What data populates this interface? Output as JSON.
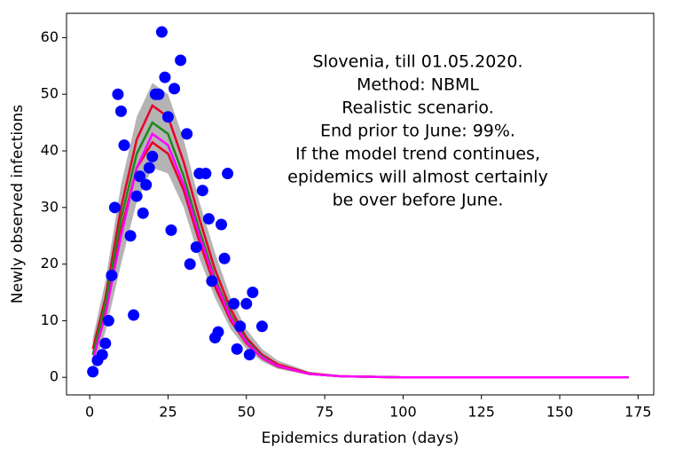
{
  "chart_data": {
    "type": "scatter",
    "annotation": [
      "Slovenia, till 01.05.2020.",
      "Method: NBML",
      "Realistic scenario.",
      "End prior to June: 99%.",
      "If the model trend continues,",
      "epidemics will almost certainly",
      "be over before June."
    ],
    "xlabel": "Epidemics duration (days)",
    "ylabel": "Newly observed infections",
    "xlim": [
      -7.4,
      180
    ],
    "ylim": [
      -3.1,
      64.3
    ],
    "xticks": [
      0,
      25,
      50,
      75,
      100,
      125,
      150,
      175
    ],
    "yticks": [
      0,
      10,
      20,
      30,
      40,
      50,
      60
    ],
    "color": "#0000ff",
    "x": [
      1,
      2.5,
      4,
      5,
      6,
      7,
      8,
      9,
      10,
      11,
      13,
      14,
      15,
      16,
      17,
      18,
      19,
      20,
      21,
      22,
      23,
      24,
      25,
      26,
      27,
      29,
      31,
      32,
      34,
      35,
      36,
      37,
      38,
      39,
      40,
      41,
      42,
      43,
      44,
      46,
      47,
      48,
      50,
      51,
      52,
      55
    ],
    "values": [
      1,
      3,
      4,
      6,
      10,
      18,
      30,
      50,
      47,
      41,
      25,
      11,
      32,
      35.5,
      29,
      34,
      37,
      39,
      50,
      50,
      61,
      53,
      46,
      26,
      51,
      56,
      43,
      20,
      23,
      36,
      33,
      36,
      28,
      17,
      7,
      8,
      27,
      21,
      36,
      13,
      5,
      9,
      13,
      4,
      15,
      9
    ],
    "curves": {
      "x": [
        1,
        5,
        10,
        15,
        20,
        25,
        30,
        35,
        40,
        45,
        50,
        55,
        60,
        70,
        80,
        100,
        130,
        172
      ],
      "band": {
        "color": "#b4b4b4",
        "upper": [
          7,
          17,
          34,
          46,
          52,
          50,
          42,
          31,
          22,
          14,
          8.5,
          5,
          3,
          1,
          0.3,
          0,
          0,
          0
        ],
        "lower": [
          1,
          8,
          20,
          31,
          37,
          36,
          30,
          21,
          14,
          8.5,
          5,
          2.8,
          1.5,
          0.4,
          0.1,
          0,
          0,
          0
        ]
      },
      "series": [
        {
          "color": "#e8002a",
          "values": [
            5,
            14,
            30,
            42,
            48,
            46,
            38,
            28,
            19,
            12,
            7,
            4,
            2.3,
            0.7,
            0.2,
            0,
            0,
            0
          ]
        },
        {
          "color": "#e8002a",
          "values": [
            4,
            12,
            26,
            37,
            41.5,
            39.5,
            33,
            24,
            16,
            10,
            6,
            3.4,
            1.9,
            0.6,
            0.2,
            0,
            0,
            0
          ]
        },
        {
          "color": "#1a8a1a",
          "values": [
            4,
            13,
            28,
            39.5,
            45,
            43,
            35.5,
            26,
            17.5,
            11,
            6.5,
            3.7,
            2,
            0.6,
            0.2,
            0,
            0,
            0
          ]
        },
        {
          "color": "#ff00ff",
          "values": [
            3,
            11,
            25,
            37,
            43,
            41,
            34,
            25,
            17,
            10.5,
            6.2,
            3.5,
            2,
            0.6,
            0.2,
            0,
            0,
            0
          ]
        }
      ]
    }
  }
}
